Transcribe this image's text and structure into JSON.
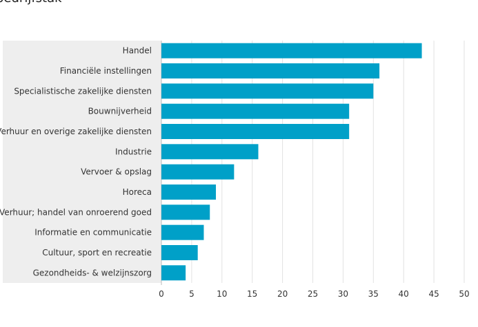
{
  "chart_data": {
    "type": "bar",
    "orientation": "horizontal",
    "title": "bedrijfstak",
    "xlabel": "",
    "ylabel": "",
    "categories": [
      "Handel",
      "Financiële instellingen",
      "Specialistische zakelijke diensten",
      "Bouwnijverheid",
      "Verhuur en overige zakelijke diensten",
      "Industrie",
      "Vervoer & opslag",
      "Horeca",
      "Verhuur; handel van onroerend goed",
      "Informatie en communicatie",
      "Cultuur, sport en recreatie",
      "Gezondheids- & welzijnszorg"
    ],
    "values": [
      43,
      36,
      35,
      31,
      31,
      16,
      12,
      9,
      8,
      7,
      6,
      4
    ],
    "xlim": [
      0,
      50
    ],
    "xticks": [
      0,
      5,
      10,
      15,
      20,
      25,
      30,
      35,
      40,
      45,
      50
    ],
    "grid": "vertical",
    "bar_color": "#00a0c8",
    "label_area_color": "#eeeeee",
    "grid_color": "#e2e2e2"
  }
}
